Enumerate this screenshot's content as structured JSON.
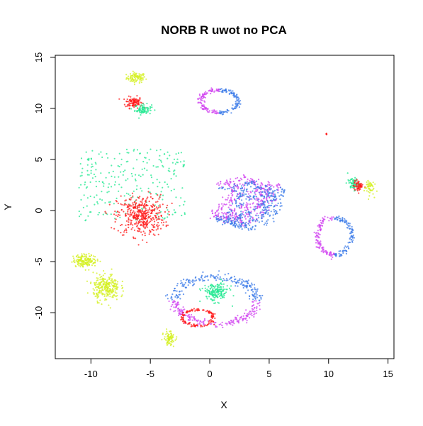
{
  "chart_data": {
    "type": "scatter",
    "title": "NORB R uwot no PCA",
    "xlabel": "X",
    "ylabel": "Y",
    "xlim": [
      -13,
      15.5
    ],
    "ylim": [
      -14.5,
      15.2
    ],
    "xticks": [
      -10,
      -5,
      0,
      5,
      10,
      15
    ],
    "xtick_labels": [
      "-10",
      "-5",
      "0",
      "5",
      "10",
      "15"
    ],
    "yticks": [
      -10,
      -5,
      0,
      5,
      10,
      15
    ],
    "ytick_labels": [
      "-10",
      "-5",
      "0",
      "5",
      "10",
      "15"
    ],
    "grid": false,
    "legend": "none",
    "colors": {
      "red": "#ff1a1a",
      "yellow_green": "#d4f020",
      "spring_green": "#20e890",
      "azure": "#3a7ae8",
      "magenta": "#d040f0"
    },
    "clusters": [
      {
        "color": "yellow_green",
        "shape": "blob",
        "center": [
          -6.2,
          13.0
        ],
        "spread": [
          0.8,
          0.5
        ],
        "count": 90
      },
      {
        "color": "red",
        "shape": "blob",
        "center": [
          -6.4,
          10.6
        ],
        "spread": [
          0.7,
          0.55
        ],
        "count": 110
      },
      {
        "color": "spring_green",
        "shape": "blob",
        "center": [
          -5.6,
          9.9
        ],
        "spread": [
          0.7,
          0.5
        ],
        "count": 80
      },
      {
        "color": "azure",
        "shape": "ring",
        "center": [
          0.8,
          10.7
        ],
        "radius": [
          1.6,
          1.1
        ],
        "arc": [
          -90,
          90
        ],
        "count": 110
      },
      {
        "color": "magenta",
        "shape": "ring",
        "center": [
          0.8,
          10.7
        ],
        "radius": [
          1.6,
          1.1
        ],
        "arc": [
          90,
          270
        ],
        "count": 110
      },
      {
        "color": "spring_green",
        "shape": "sparse",
        "center": [
          -6.5,
          2.5
        ],
        "spread": [
          4.5,
          3.5
        ],
        "count": 260
      },
      {
        "color": "red",
        "shape": "blob",
        "center": [
          -5.8,
          -0.5
        ],
        "spread": [
          2.0,
          2.0
        ],
        "count": 420
      },
      {
        "color": "magenta",
        "shape": "loops",
        "center": [
          3.0,
          1.0
        ],
        "spread": [
          2.8,
          5.0
        ],
        "count": 420
      },
      {
        "color": "azure",
        "shape": "loops",
        "center": [
          3.5,
          0.5
        ],
        "spread": [
          2.8,
          5.0
        ],
        "count": 420
      },
      {
        "color": "spring_green",
        "shape": "blob",
        "center": [
          12.1,
          2.6
        ],
        "spread": [
          0.5,
          0.6
        ],
        "count": 70
      },
      {
        "color": "red",
        "shape": "blob",
        "center": [
          12.5,
          2.4
        ],
        "spread": [
          0.4,
          0.55
        ],
        "count": 60
      },
      {
        "color": "yellow_green",
        "shape": "blob",
        "center": [
          13.4,
          2.3
        ],
        "spread": [
          0.4,
          0.8
        ],
        "count": 50
      },
      {
        "color": "azure",
        "shape": "ring",
        "center": [
          10.5,
          -2.5
        ],
        "radius": [
          1.5,
          1.8
        ],
        "arc": [
          -90,
          90
        ],
        "count": 110
      },
      {
        "color": "magenta",
        "shape": "ring",
        "center": [
          10.5,
          -2.5
        ],
        "radius": [
          1.5,
          1.8
        ],
        "arc": [
          90,
          270
        ],
        "count": 110
      },
      {
        "color": "yellow_green",
        "shape": "blob",
        "center": [
          -10.5,
          -4.9
        ],
        "spread": [
          1.0,
          0.6
        ],
        "count": 160
      },
      {
        "color": "yellow_green",
        "shape": "blob",
        "center": [
          -8.7,
          -7.5
        ],
        "spread": [
          1.1,
          1.3
        ],
        "count": 260
      },
      {
        "color": "magenta",
        "shape": "ring",
        "center": [
          0.5,
          -8.8
        ],
        "radius": [
          3.5,
          2.3
        ],
        "arc": [
          180,
          360
        ],
        "count": 200
      },
      {
        "color": "azure",
        "shape": "ring",
        "center": [
          0.5,
          -8.8
        ],
        "radius": [
          3.5,
          2.3
        ],
        "arc": [
          0,
          180
        ],
        "count": 200
      },
      {
        "color": "spring_green",
        "shape": "blob",
        "center": [
          0.5,
          -8.0
        ],
        "spread": [
          1.1,
          0.9
        ],
        "count": 170
      },
      {
        "color": "red",
        "shape": "ring",
        "center": [
          -1.0,
          -10.5
        ],
        "radius": [
          1.3,
          0.8
        ],
        "arc": [
          0,
          360
        ],
        "count": 130
      },
      {
        "color": "yellow_green",
        "shape": "blob",
        "center": [
          -3.4,
          -12.5
        ],
        "spread": [
          0.45,
          0.7
        ],
        "count": 80
      },
      {
        "color": "red",
        "shape": "blob",
        "center": [
          9.8,
          7.5
        ],
        "spread": [
          0.1,
          0.1
        ],
        "count": 6
      }
    ]
  }
}
